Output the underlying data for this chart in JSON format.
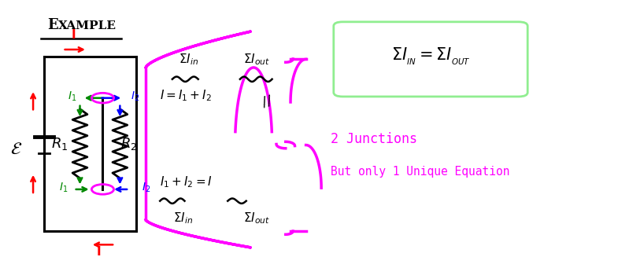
{
  "bg_color": "#ffffff",
  "magenta_color": "#ff00ff",
  "red_color": "#ff0000",
  "green_color": "#008800",
  "blue_color": "#0000ff",
  "black_color": "#000000",
  "teal_box_color": "#90EE90",
  "title": "Example",
  "junction_text_1a": "$\\Sigma I_{in}$",
  "junction_text_1b": "$\\Sigma I_{out}$",
  "eq_top": "$I = I_1 + I_2$",
  "eq_bot": "$I_1 + I_2 = I$",
  "junction_text_2a": "$\\Sigma I_{in}$",
  "junction_text_2b": "$\\Sigma I_{out}$",
  "box_eq": "$\\Sigma I_{IN} = \\Sigma I_{OUT}$",
  "label_junctions": "2 Junctions",
  "label_unique": "But only 1 Unique Equation"
}
